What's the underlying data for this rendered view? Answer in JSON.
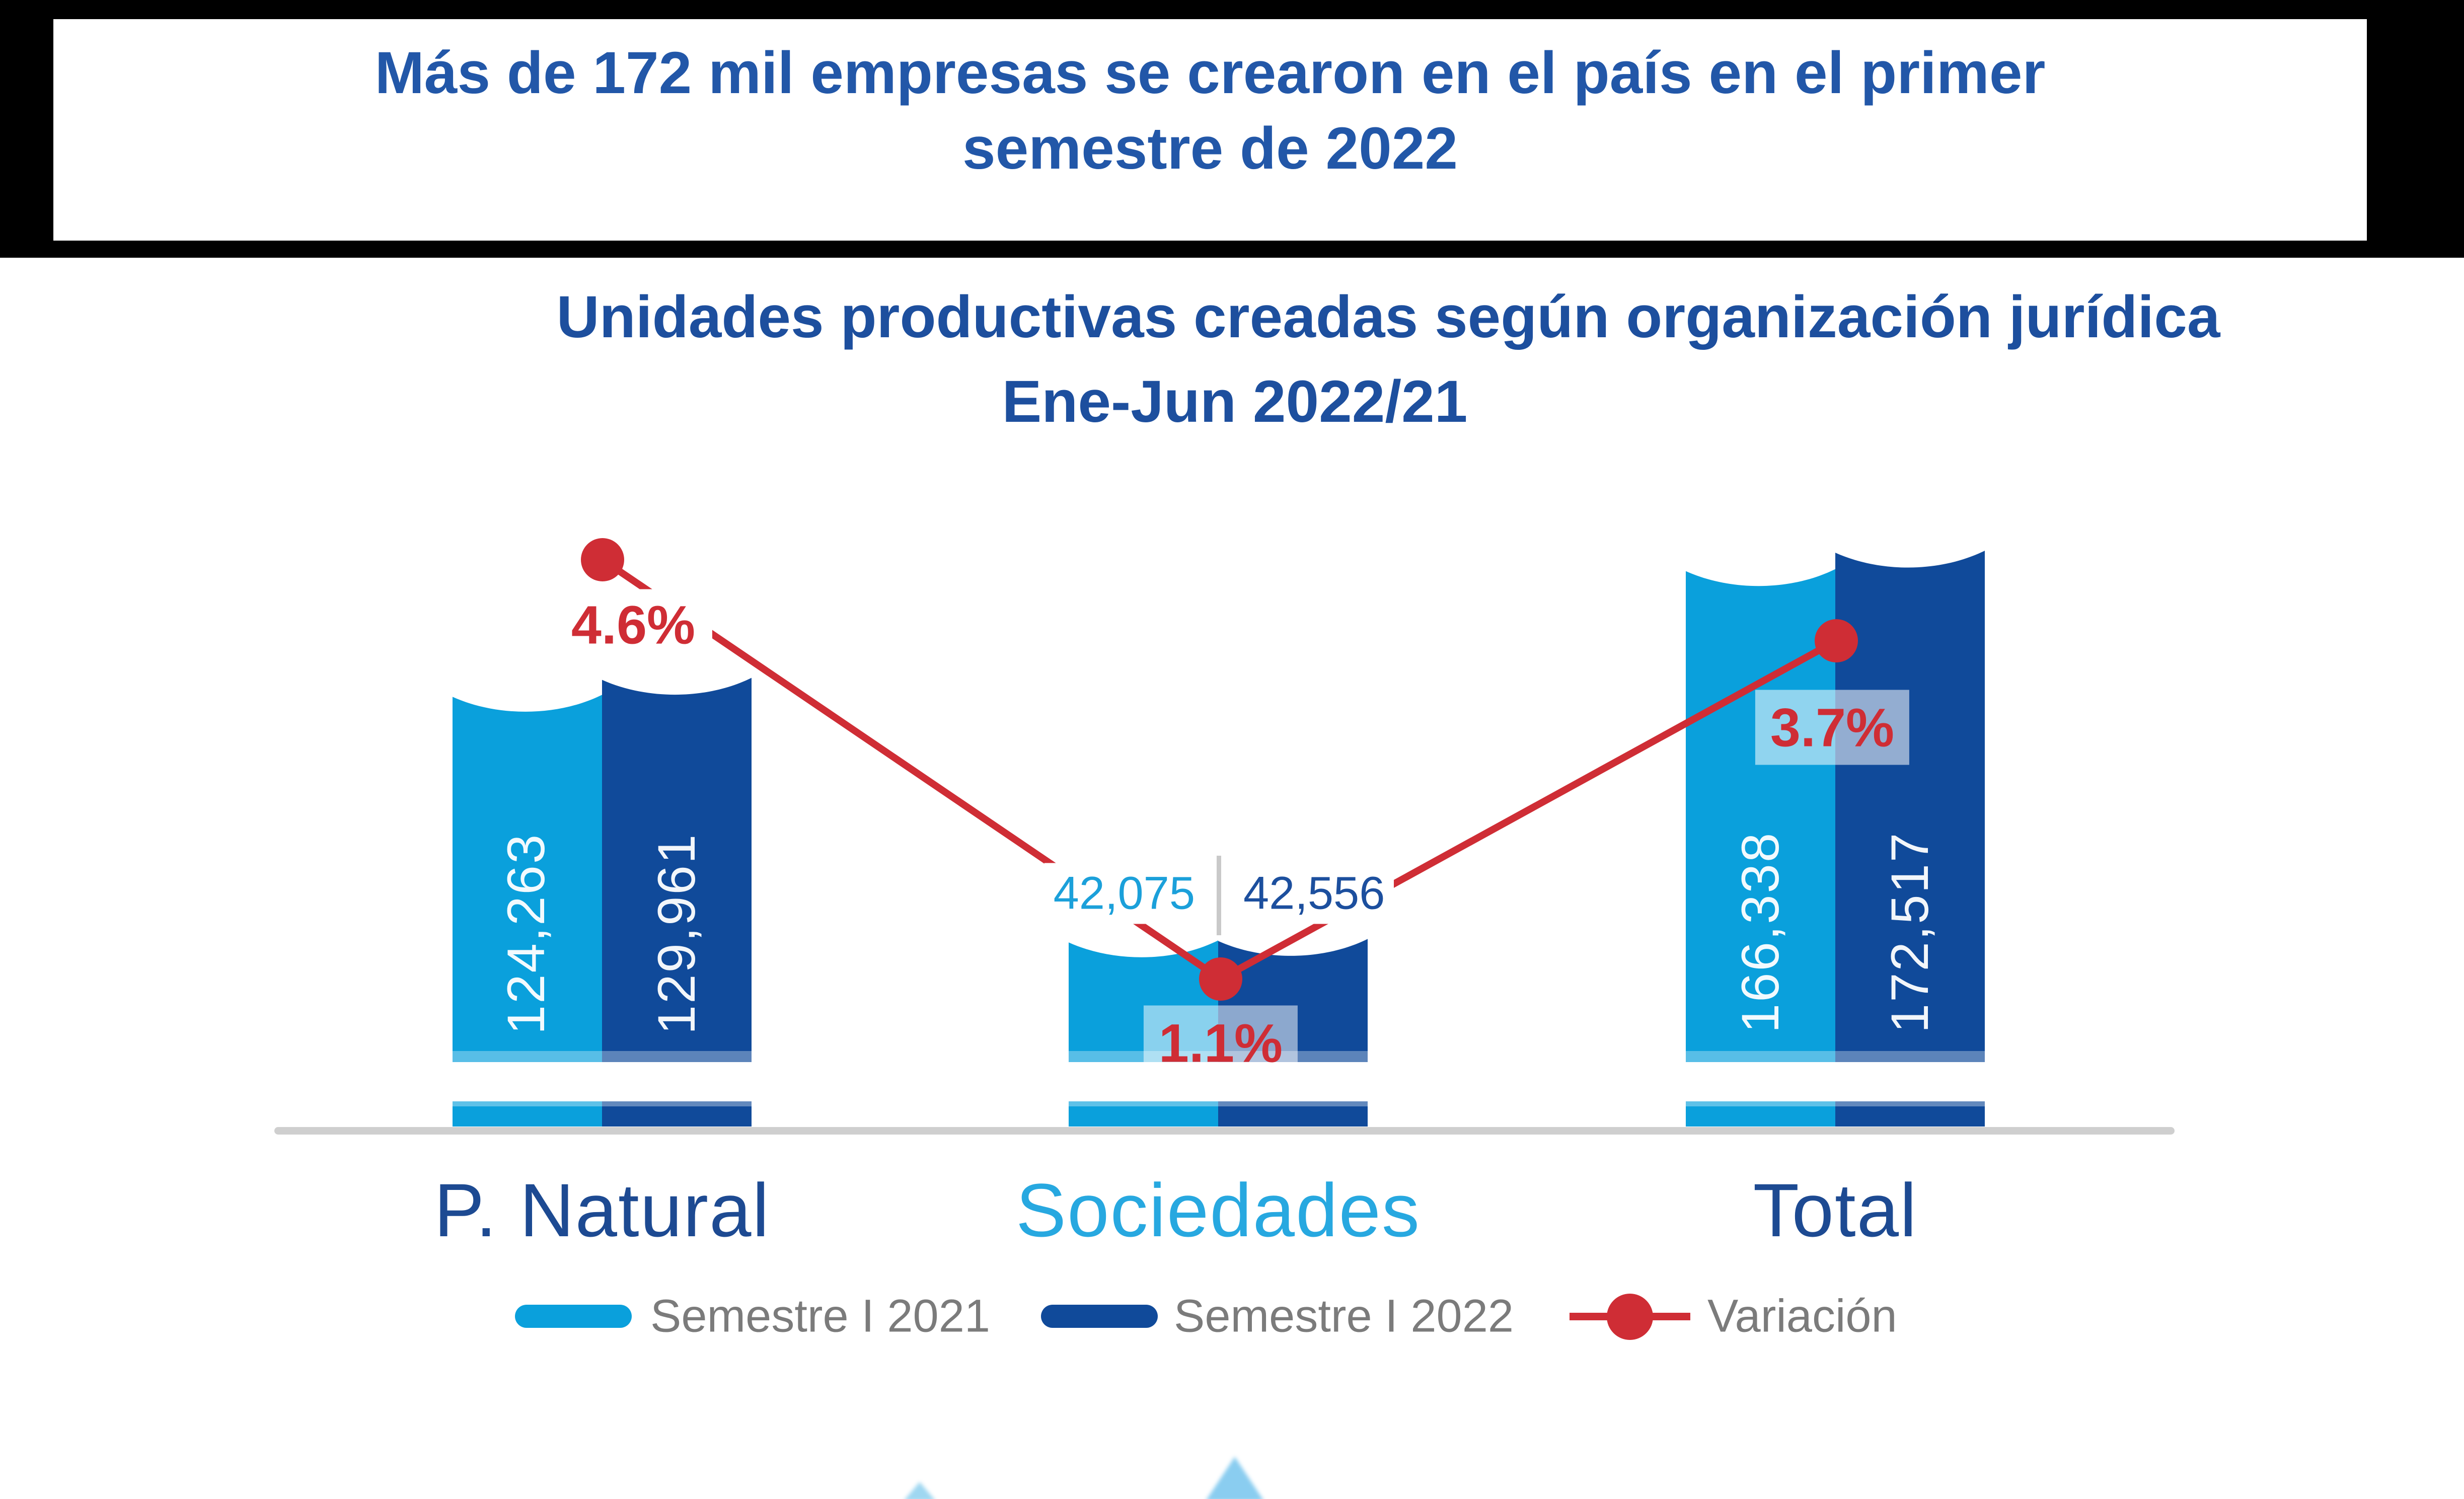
{
  "banner": {
    "line1": "Más de 172 mil empresas se crearon en el país en el primer",
    "line2": "semestre de 2022"
  },
  "chart": {
    "title_line1": "Unidades productivas creadas según organización jurídica",
    "title_line2": "Ene-Jun 2022/21"
  },
  "chart_data": {
    "type": "bar",
    "title": "Unidades productivas creadas según organización jurídica Ene-Jun 2022/21",
    "categories": [
      "P. Natural",
      "Sociedades",
      "Total"
    ],
    "series": [
      {
        "name": "Semestre I 2021",
        "color": "#0aa0dc",
        "values": [
          124263,
          42075,
          166338
        ],
        "value_labels": [
          "124,263",
          "42,075",
          "166,338"
        ]
      },
      {
        "name": "Semestre I 2022",
        "color": "#104a9a",
        "values": [
          129961,
          42556,
          172517
        ],
        "value_labels": [
          "129,961",
          "42,556",
          "172,517"
        ]
      }
    ],
    "variation_series": {
      "name": "Variación",
      "color": "#cf2d35",
      "values_percent": [
        4.6,
        1.1,
        3.7
      ],
      "percent_labels": [
        "4.6%",
        "1.1%",
        "3.7%"
      ]
    },
    "ylim": [
      0,
      180000
    ],
    "grid": false,
    "legend_position": "bottom",
    "axis_color": "#cfcfcf"
  },
  "legend": {
    "items": [
      {
        "label": "Semestre I 2021",
        "color": "#0aa0dc",
        "marker": "line"
      },
      {
        "label": "Semestre I 2022",
        "color": "#104a9a",
        "marker": "line"
      },
      {
        "label": "Variación",
        "color": "#cf2d35",
        "marker": "line-dot"
      }
    ]
  }
}
